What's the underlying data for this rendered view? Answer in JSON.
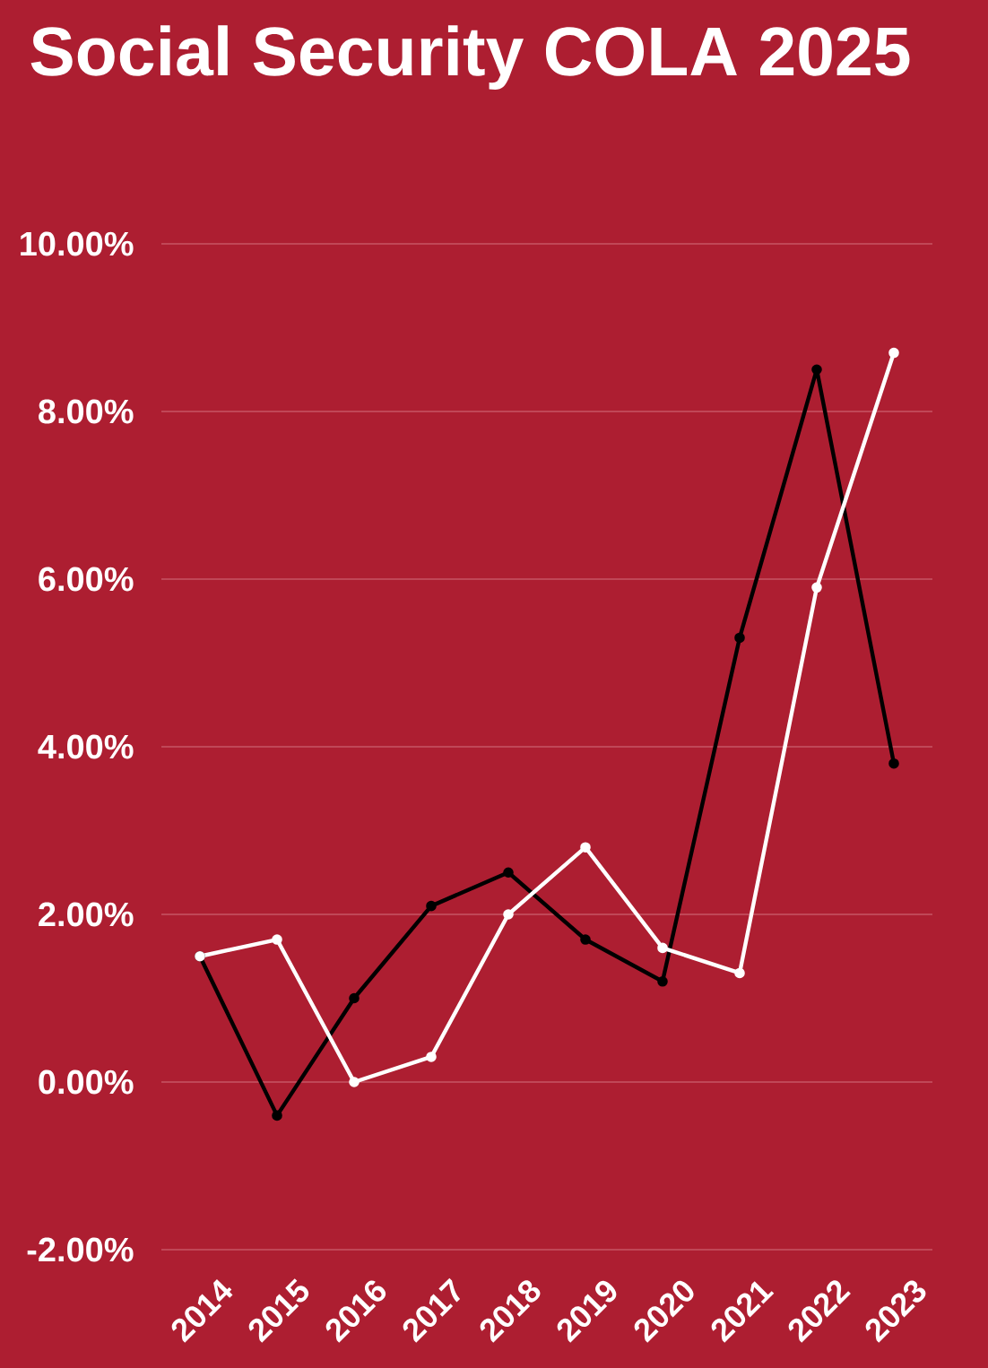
{
  "chart_data": {
    "type": "line",
    "title": "Social Security COLA 2025",
    "categories": [
      "2014",
      "2015",
      "2016",
      "2017",
      "2018",
      "2019",
      "2020",
      "2021",
      "2022",
      "2023"
    ],
    "series": [
      {
        "color": "#000000",
        "values": [
          1.5,
          -0.4,
          1.0,
          2.1,
          2.5,
          1.7,
          1.2,
          5.3,
          8.5,
          3.8
        ]
      },
      {
        "color": "#ffffff",
        "values": [
          1.5,
          1.7,
          0.0,
          0.3,
          2.0,
          2.8,
          1.6,
          1.3,
          5.9,
          8.7
        ]
      }
    ],
    "ylim": [
      -2,
      10
    ],
    "yticks": [
      {
        "value": -2,
        "label": "-2.00%"
      },
      {
        "value": 0,
        "label": "0.00%"
      },
      {
        "value": 2,
        "label": "2.00%"
      },
      {
        "value": 4,
        "label": "4.00%"
      },
      {
        "value": 6,
        "label": "6.00%"
      },
      {
        "value": 8,
        "label": "8.00%"
      },
      {
        "value": 10,
        "label": "10.00%"
      }
    ],
    "grid": "y",
    "marker": "circle",
    "line_style": "solid"
  }
}
